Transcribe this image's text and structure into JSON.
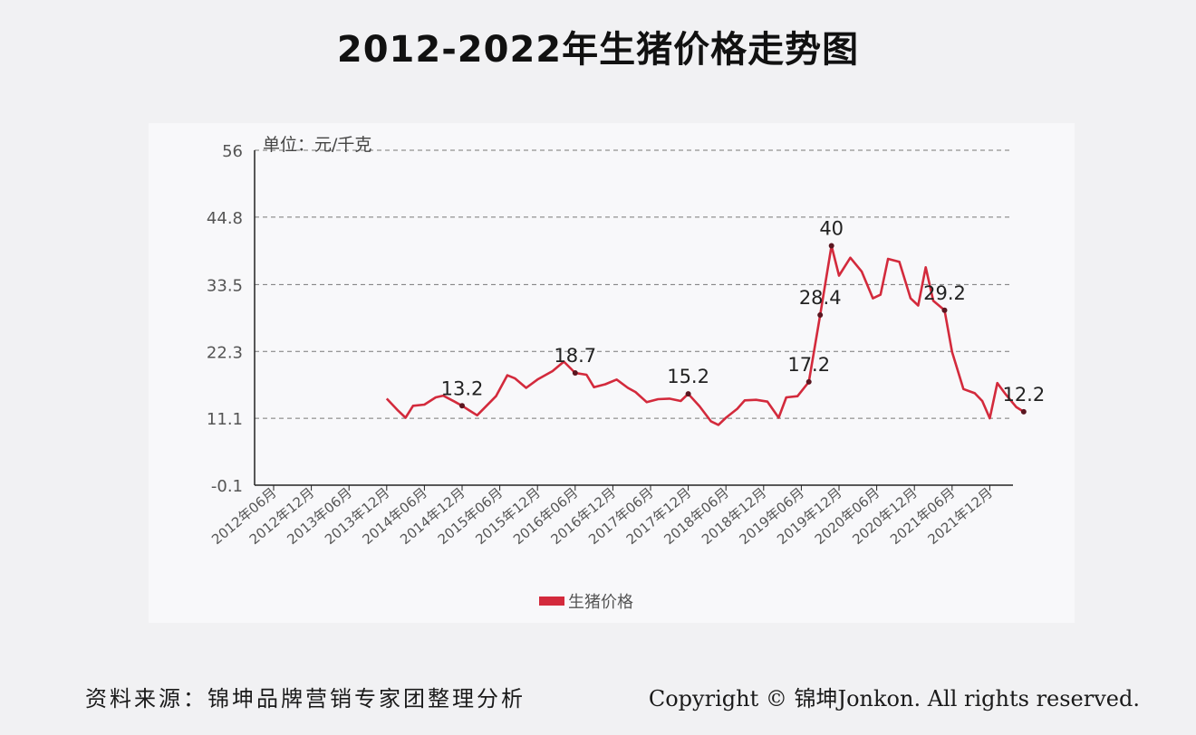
{
  "chart_data": {
    "type": "line",
    "title": "2012-2022年生猪价格走势图",
    "unit_label": "单位：元/千克",
    "ylim": [
      -0.1,
      56
    ],
    "yticks": [
      "-0.1",
      "11.1",
      "22.3",
      "33.5",
      "44.8",
      "56"
    ],
    "xticks": [
      "2012年06月",
      "2012年12月",
      "2013年06月",
      "2013年12月",
      "2014年06月",
      "2014年12月",
      "2015年06月",
      "2015年12月",
      "2016年06月",
      "2016年12月",
      "2017年06月",
      "2017年12月",
      "2018年06月",
      "2018年12月",
      "2019年06月",
      "2019年12月",
      "2020年06月",
      "2020年12月",
      "2021年06月",
      "2021年12月"
    ],
    "grid": true,
    "legend": "bottom",
    "series": [
      {
        "name": "生猪价格",
        "color": "#d32a3c",
        "points": [
          [
            3.0,
            14.4
          ],
          [
            3.3,
            12.4
          ],
          [
            3.5,
            11.2
          ],
          [
            3.7,
            13.2
          ],
          [
            4.0,
            13.4
          ],
          [
            4.3,
            14.6
          ],
          [
            4.5,
            14.9
          ],
          [
            4.8,
            13.9
          ],
          [
            5.0,
            13.2
          ],
          [
            5.2,
            12.4
          ],
          [
            5.4,
            11.6
          ],
          [
            5.6,
            12.9
          ],
          [
            5.9,
            14.8
          ],
          [
            6.2,
            18.3
          ],
          [
            6.4,
            17.8
          ],
          [
            6.7,
            16.2
          ],
          [
            7.0,
            17.6
          ],
          [
            7.4,
            19.0
          ],
          [
            7.7,
            20.6
          ],
          [
            8.0,
            18.7
          ],
          [
            8.3,
            18.4
          ],
          [
            8.5,
            16.3
          ],
          [
            8.8,
            16.8
          ],
          [
            9.1,
            17.6
          ],
          [
            9.4,
            16.2
          ],
          [
            9.6,
            15.5
          ],
          [
            9.9,
            13.8
          ],
          [
            10.2,
            14.3
          ],
          [
            10.5,
            14.4
          ],
          [
            10.8,
            14.0
          ],
          [
            11.0,
            15.2
          ],
          [
            11.3,
            13.1
          ],
          [
            11.6,
            10.6
          ],
          [
            11.8,
            10.0
          ],
          [
            12.0,
            11.2
          ],
          [
            12.3,
            12.7
          ],
          [
            12.5,
            14.1
          ],
          [
            12.8,
            14.2
          ],
          [
            13.1,
            13.9
          ],
          [
            13.4,
            11.2
          ],
          [
            13.6,
            14.6
          ],
          [
            13.9,
            14.8
          ],
          [
            14.2,
            17.2
          ],
          [
            14.5,
            28.4
          ],
          [
            14.8,
            40.0
          ],
          [
            15.0,
            35.0
          ],
          [
            15.3,
            38.0
          ],
          [
            15.6,
            35.7
          ],
          [
            15.9,
            31.2
          ],
          [
            16.1,
            31.8
          ],
          [
            16.3,
            37.8
          ],
          [
            16.6,
            37.3
          ],
          [
            16.9,
            31.2
          ],
          [
            17.1,
            30.0
          ],
          [
            17.3,
            36.4
          ],
          [
            17.5,
            30.8
          ],
          [
            17.8,
            29.2
          ],
          [
            18.0,
            22.2
          ],
          [
            18.3,
            16.0
          ],
          [
            18.6,
            15.3
          ],
          [
            18.8,
            14.0
          ],
          [
            19.0,
            11.1
          ],
          [
            19.2,
            17.0
          ],
          [
            19.4,
            15.3
          ],
          [
            19.7,
            13.0
          ],
          [
            19.9,
            12.2
          ]
        ],
        "labels": [
          {
            "x": 5.0,
            "y": 13.2,
            "text": "13.2"
          },
          {
            "x": 8.0,
            "y": 18.7,
            "text": "18.7"
          },
          {
            "x": 11.0,
            "y": 15.2,
            "text": "15.2"
          },
          {
            "x": 14.2,
            "y": 17.2,
            "text": "17.2"
          },
          {
            "x": 14.5,
            "y": 28.4,
            "text": "28.4"
          },
          {
            "x": 14.8,
            "y": 40.0,
            "text": "40"
          },
          {
            "x": 17.8,
            "y": 29.2,
            "text": "29.2"
          },
          {
            "x": 19.9,
            "y": 12.2,
            "text": "12.2"
          }
        ]
      }
    ]
  },
  "footer": {
    "source": "资料来源：锦坤品牌营销专家团整理分析",
    "copyright": "Copyright © 锦坤Jonkon. All rights reserved."
  }
}
